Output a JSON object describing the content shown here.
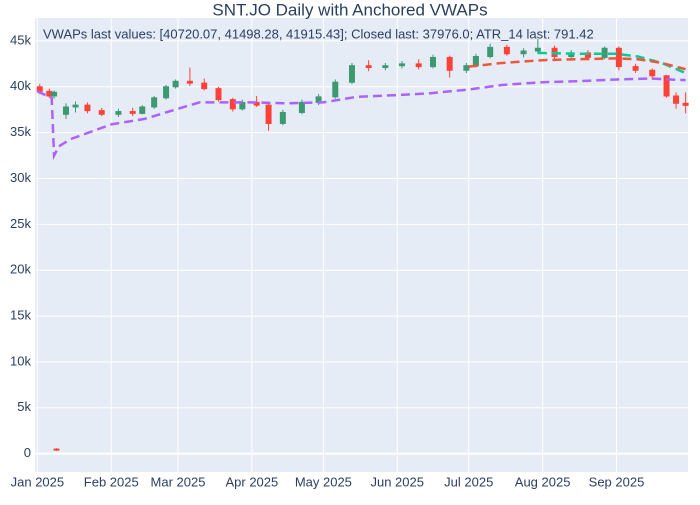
{
  "chart_data": {
    "type": "candlestick",
    "title": "SNT.JO Daily with Anchored VWAPs",
    "annotation": "VWAPs last values: [40720.07, 41498.28, 41915.43]; Closed last: 37976.0; ATR_14 last: 791.42",
    "xlim": [
      "2024-12-31",
      "2025-10-01"
    ],
    "xticks": [
      {
        "value": "2025-01-01",
        "label": "Jan 2025"
      },
      {
        "value": "2025-02-01",
        "label": "Feb 2025"
      },
      {
        "value": "2025-03-01",
        "label": "Mar 2025"
      },
      {
        "value": "2025-04-01",
        "label": "Apr 2025"
      },
      {
        "value": "2025-05-01",
        "label": "May 2025"
      },
      {
        "value": "2025-06-01",
        "label": "Jun 2025"
      },
      {
        "value": "2025-07-01",
        "label": "Jul 2025"
      },
      {
        "value": "2025-08-01",
        "label": "Aug 2025"
      },
      {
        "value": "2025-09-01",
        "label": "Sep 2025"
      }
    ],
    "ylim": [
      -2000,
      47500
    ],
    "yticks": [
      0,
      {
        "value": 5000,
        "label": "5k"
      },
      {
        "value": 10000,
        "label": "10k"
      },
      {
        "value": 15000,
        "label": "15k"
      },
      {
        "value": 20000,
        "label": "20k"
      },
      {
        "value": 25000,
        "label": "25k"
      },
      {
        "value": 30000,
        "label": "30k"
      },
      {
        "value": 35000,
        "label": "35k"
      },
      {
        "value": 40000,
        "label": "40k"
      },
      {
        "value": 45000,
        "label": "45k"
      }
    ],
    "grid": true,
    "increasing_color": "#3d9970",
    "decreasing_color": "#ff4136",
    "candles": {
      "x": [
        "2025-01-02",
        "2025-01-06",
        "2025-01-08",
        "2025-01-09",
        "2025-01-13",
        "2025-01-17",
        "2025-01-22",
        "2025-01-28",
        "2025-02-04",
        "2025-02-10",
        "2025-02-14",
        "2025-02-19",
        "2025-02-24",
        "2025-02-28",
        "2025-03-06",
        "2025-03-12",
        "2025-03-18",
        "2025-03-24",
        "2025-03-28",
        "2025-04-03",
        "2025-04-08",
        "2025-04-14",
        "2025-04-22",
        "2025-04-29",
        "2025-05-06",
        "2025-05-13",
        "2025-05-20",
        "2025-05-27",
        "2025-06-03",
        "2025-06-10",
        "2025-06-16",
        "2025-06-23",
        "2025-06-30",
        "2025-07-04",
        "2025-07-10",
        "2025-07-17",
        "2025-07-24",
        "2025-07-30",
        "2025-08-06",
        "2025-08-13",
        "2025-08-20",
        "2025-08-27",
        "2025-09-02",
        "2025-09-09",
        "2025-09-16",
        "2025-09-22",
        "2025-09-26",
        "2025-09-30"
      ],
      "open": [
        40000,
        39500,
        39000,
        500,
        37000,
        37800,
        38000,
        37400,
        37000,
        37300,
        37100,
        37800,
        38800,
        40000,
        40600,
        40400,
        39800,
        38600,
        37600,
        38300,
        38000,
        36000,
        37200,
        38300,
        38900,
        40500,
        42300,
        42100,
        42300,
        42500,
        42200,
        43200,
        41800,
        42300,
        43300,
        44300,
        43600,
        43900,
        44200,
        43300,
        43700,
        43200,
        44200,
        42200,
        41800,
        41200,
        39000,
        38200
      ],
      "high": [
        40300,
        39800,
        39600,
        600,
        38200,
        38400,
        38300,
        37700,
        37600,
        37700,
        38000,
        39000,
        40200,
        40800,
        42100,
        40900,
        40000,
        38800,
        38600,
        39000,
        38200,
        37500,
        38600,
        39200,
        40800,
        42600,
        42900,
        42600,
        42800,
        43000,
        43500,
        43400,
        42600,
        43600,
        44700,
        44600,
        44200,
        45200,
        44500,
        44000,
        44000,
        44400,
        44400,
        42500,
        42000,
        41300,
        39400,
        39400
      ],
      "low": [
        39200,
        38800,
        38700,
        300,
        36500,
        37200,
        37100,
        36800,
        36700,
        36800,
        37000,
        37600,
        38600,
        39800,
        40100,
        39600,
        38400,
        37300,
        37400,
        37800,
        35200,
        35800,
        37000,
        38000,
        38700,
        40300,
        41700,
        41800,
        42000,
        41900,
        42000,
        41000,
        41500,
        42100,
        43100,
        43400,
        43200,
        43600,
        43000,
        43000,
        42900,
        43000,
        41800,
        41500,
        40800,
        38800,
        37600,
        37100
      ],
      "close": [
        39500,
        39000,
        39400,
        400,
        37800,
        38000,
        37400,
        37000,
        37300,
        37100,
        37800,
        38800,
        40000,
        40600,
        40400,
        39800,
        38600,
        37600,
        38300,
        38000,
        36000,
        37200,
        38300,
        38900,
        40500,
        42300,
        42100,
        42300,
        42500,
        42200,
        43200,
        41800,
        42300,
        43300,
        44300,
        43600,
        43900,
        44200,
        43300,
        43700,
        43200,
        44200,
        42200,
        41800,
        41200,
        39000,
        38200,
        37976
      ]
    },
    "series": [
      {
        "color": "#ab63fa",
        "x": [
          "2025-01-01",
          "2025-01-07",
          "2025-01-08",
          "2025-01-10",
          "2025-01-15",
          "2025-02-01",
          "2025-02-15",
          "2025-03-01",
          "2025-03-10",
          "2025-04-01",
          "2025-04-15",
          "2025-05-01",
          "2025-05-15",
          "2025-06-01",
          "2025-06-15",
          "2025-07-01",
          "2025-07-15",
          "2025-08-01",
          "2025-08-15",
          "2025-09-01",
          "2025-09-15",
          "2025-09-30"
        ],
        "values": [
          39500,
          38800,
          32500,
          33500,
          34300,
          35900,
          36500,
          37600,
          38300,
          38300,
          38200,
          38300,
          38900,
          39100,
          39300,
          39700,
          40200,
          40500,
          40600,
          40800,
          40900,
          40720.07
        ]
      },
      {
        "color": "#00cc96",
        "x": [
          "2025-07-30",
          "2025-08-15",
          "2025-09-01",
          "2025-09-10",
          "2025-09-20",
          "2025-09-30"
        ],
        "values": [
          43700,
          43600,
          43600,
          43300,
          42600,
          41498.28
        ]
      },
      {
        "color": "#ef553b",
        "x": [
          "2025-07-01",
          "2025-07-15",
          "2025-08-01",
          "2025-08-15",
          "2025-09-01",
          "2025-09-10",
          "2025-09-20",
          "2025-09-30"
        ],
        "values": [
          42200,
          42600,
          42900,
          43000,
          43100,
          43000,
          42600,
          41915.43
        ]
      }
    ]
  }
}
